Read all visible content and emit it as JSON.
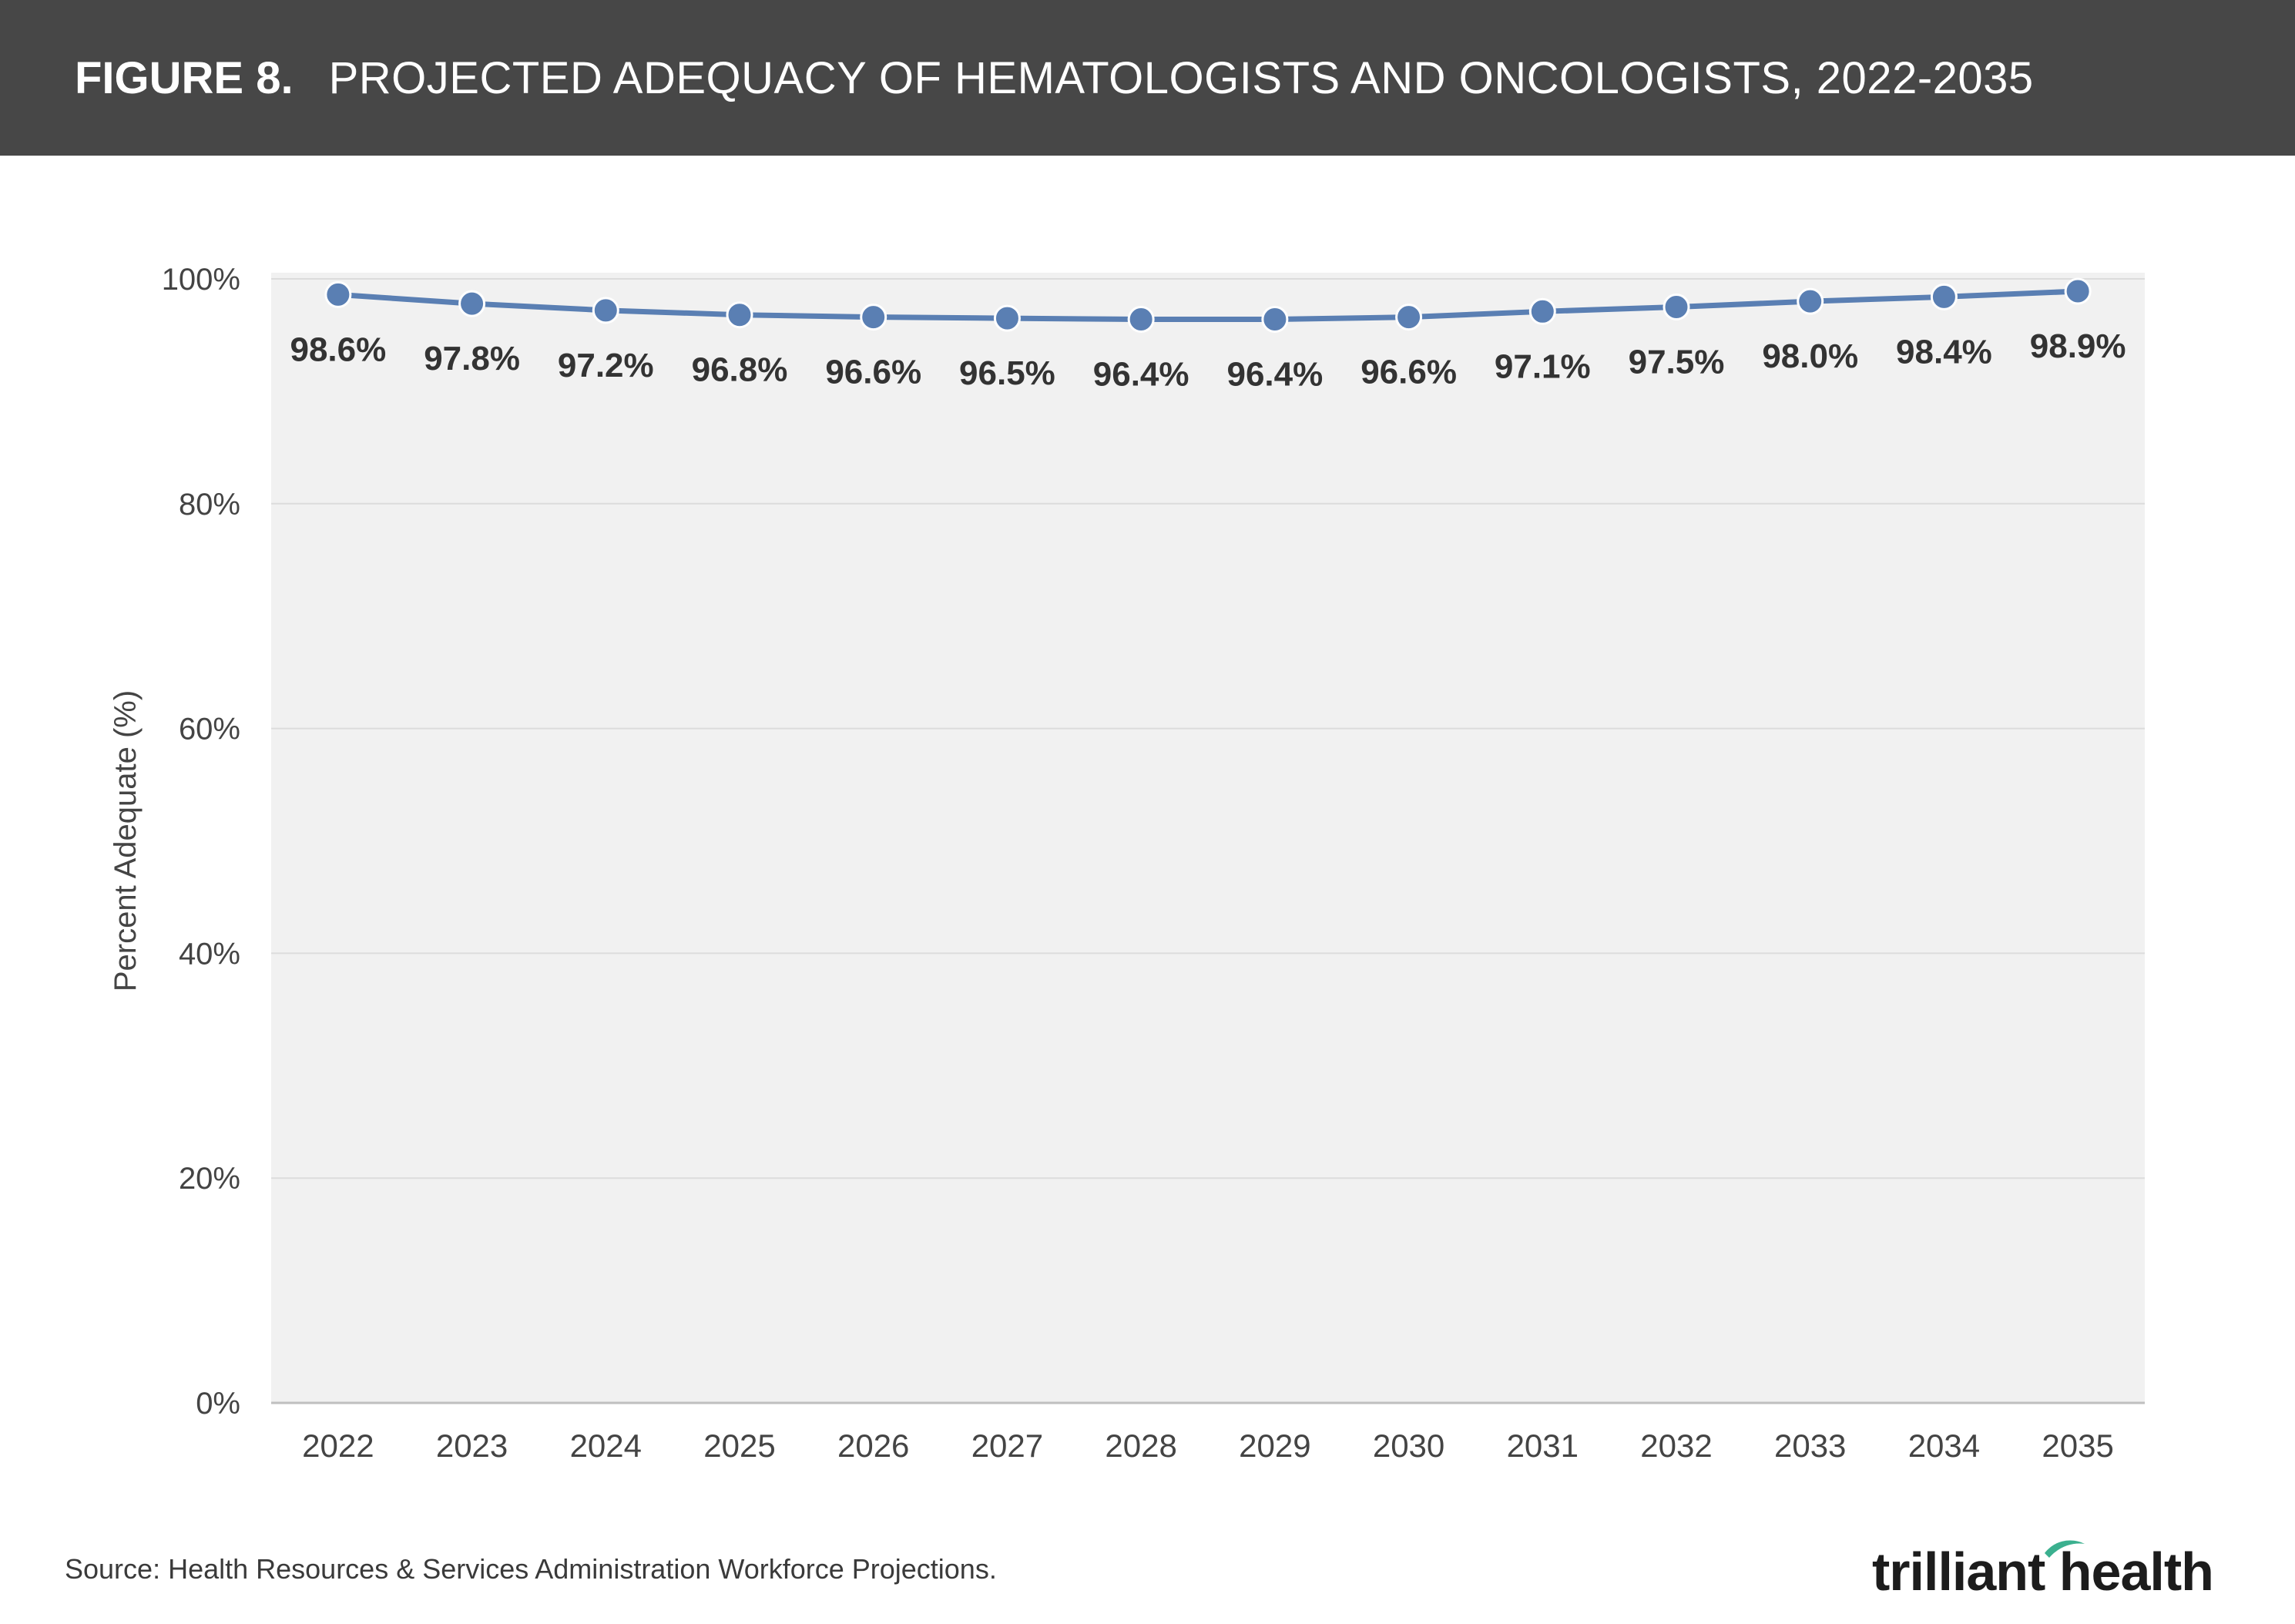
{
  "header": {
    "figure_label": "FIGURE 8.",
    "title": "PROJECTED ADEQUACY OF HEMATOLOGISTS AND ONCOLOGISTS, 2022-2035"
  },
  "footer": {
    "source": "Source: Health Resources & Services Administration Workforce Projections.",
    "logo_text": "trilliant health"
  },
  "colors": {
    "series": "#5a7fb3",
    "plot_bg": "#f1f1f1",
    "grid": "#dcdcdc",
    "header_bg": "#474747",
    "logo_accent": "#3bb08f"
  },
  "chart_data": {
    "type": "line",
    "title": "PROJECTED ADEQUACY OF HEMATOLOGISTS AND ONCOLOGISTS, 2022-2035",
    "xlabel": "",
    "ylabel": "Percent Adequate (%)",
    "ylim": [
      0,
      100
    ],
    "yticks": [
      "0%",
      "20%",
      "40%",
      "60%",
      "80%",
      "100%"
    ],
    "ytick_values": [
      0,
      20,
      40,
      60,
      80,
      100
    ],
    "grid": true,
    "categories": [
      "2022",
      "2023",
      "2024",
      "2025",
      "2026",
      "2027",
      "2028",
      "2029",
      "2030",
      "2031",
      "2032",
      "2033",
      "2034",
      "2035"
    ],
    "series": [
      {
        "values": [
          98.6,
          97.8,
          97.2,
          96.8,
          96.6,
          96.5,
          96.4,
          96.4,
          96.6,
          97.1,
          97.5,
          98.0,
          98.4,
          98.9
        ],
        "labels": [
          "98.6%",
          "97.8%",
          "97.2%",
          "96.8%",
          "96.6%",
          "96.5%",
          "96.4%",
          "96.4%",
          "96.6%",
          "97.1%",
          "97.5%",
          "98.0%",
          "98.4%",
          "98.9%"
        ]
      }
    ]
  }
}
